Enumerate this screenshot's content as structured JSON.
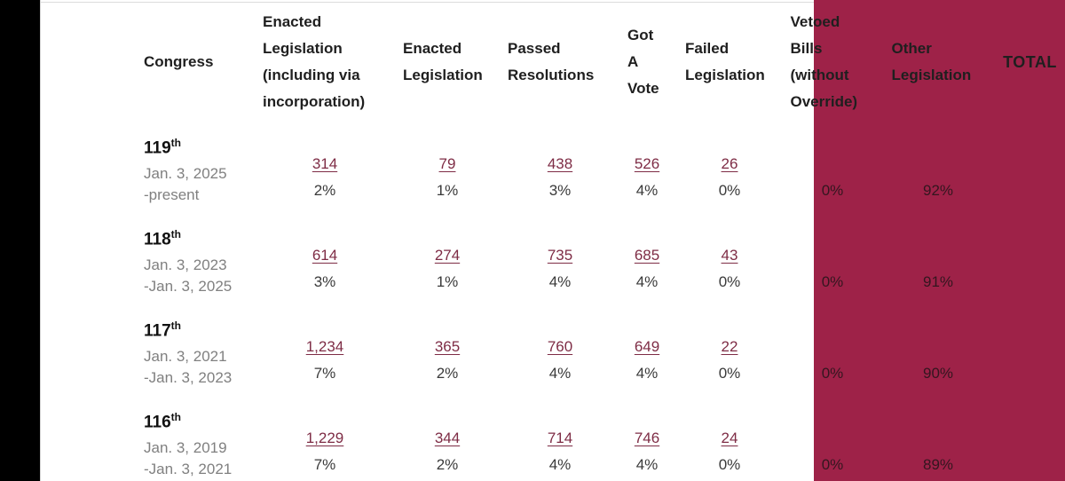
{
  "theme": {
    "background": "#ffffff",
    "left_bar_color": "#000000",
    "highlight_color": "#9e2248",
    "link_color": "#7e2c45",
    "header_text_color": "#1f1f1f",
    "muted_text_color": "#808080",
    "value_text_color": "#3a3a3a"
  },
  "table": {
    "headers": {
      "congress": "Congress",
      "enacted_incl": "Enacted Legislation (including via incorporation)",
      "enacted": "Enacted Legislation",
      "passed_res": "Passed Resolutions",
      "got_vote": "Got A Vote",
      "failed": "Failed Legislation",
      "vetoed": "Vetoed Bills (without Override)",
      "other": "Other Legislation",
      "total": "TOTAL"
    },
    "rows": [
      {
        "congress_number": "119",
        "congress_suffix": "th",
        "term_start": "Jan. 3, 2025",
        "term_end": "-present",
        "enacted_incl_count": "314",
        "enacted_incl_pct": "2%",
        "enacted_count": "79",
        "enacted_pct": "1%",
        "passed_res_count": "438",
        "passed_res_pct": "3%",
        "got_vote_count": "526",
        "got_vote_pct": "4%",
        "failed_count": "26",
        "failed_pct": "0%",
        "vetoed_pct": "0%",
        "other_pct": "92%"
      },
      {
        "congress_number": "118",
        "congress_suffix": "th",
        "term_start": "Jan. 3, 2023",
        "term_end": "-Jan. 3, 2025",
        "enacted_incl_count": "614",
        "enacted_incl_pct": "3%",
        "enacted_count": "274",
        "enacted_pct": "1%",
        "passed_res_count": "735",
        "passed_res_pct": "4%",
        "got_vote_count": "685",
        "got_vote_pct": "4%",
        "failed_count": "43",
        "failed_pct": "0%",
        "vetoed_pct": "0%",
        "other_pct": "91%"
      },
      {
        "congress_number": "117",
        "congress_suffix": "th",
        "term_start": "Jan. 3, 2021",
        "term_end": "-Jan. 3, 2023",
        "enacted_incl_count": "1,234",
        "enacted_incl_pct": "7%",
        "enacted_count": "365",
        "enacted_pct": "2%",
        "passed_res_count": "760",
        "passed_res_pct": "4%",
        "got_vote_count": "649",
        "got_vote_pct": "4%",
        "failed_count": "22",
        "failed_pct": "0%",
        "vetoed_pct": "0%",
        "other_pct": "90%"
      },
      {
        "congress_number": "116",
        "congress_suffix": "th",
        "term_start": "Jan. 3, 2019",
        "term_end": "-Jan. 3, 2021",
        "enacted_incl_count": "1,229",
        "enacted_incl_pct": "7%",
        "enacted_count": "344",
        "enacted_pct": "2%",
        "passed_res_count": "714",
        "passed_res_pct": "4%",
        "got_vote_count": "746",
        "got_vote_pct": "4%",
        "failed_count": "24",
        "failed_pct": "0%",
        "vetoed_pct": "0%",
        "other_pct": "89%"
      }
    ]
  }
}
